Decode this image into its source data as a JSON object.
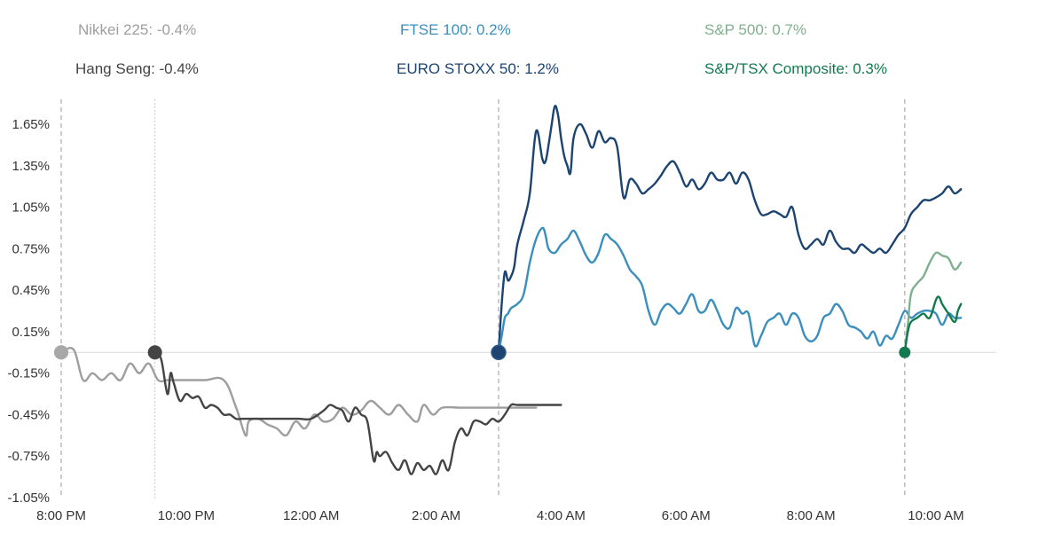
{
  "legend": [
    {
      "label": "Nikkei 225: -0.4%",
      "color": "#9e9e9e"
    },
    {
      "label": "FTSE 100: 0.2%",
      "color": "#3a8fbd"
    },
    {
      "label": "S&P 500: 0.7%",
      "color": "#7fb08f"
    },
    {
      "label": "Hang Seng: -0.4%",
      "color": "#444444"
    },
    {
      "label": "EURO STOXX 50: 1.2%",
      "color": "#1d4470"
    },
    {
      "label": "S&P/TSX Composite: 0.3%",
      "color": "#137a4f"
    }
  ],
  "chart_data": {
    "type": "line",
    "title": "",
    "xlabel": "",
    "ylabel": "",
    "x_unit": "hours since 8:00 PM",
    "xlim": [
      0,
      14.6
    ],
    "ylim": [
      -1.05,
      1.75
    ],
    "y_ticks": [
      -1.05,
      -0.75,
      -0.45,
      -0.15,
      0.15,
      0.45,
      0.75,
      1.05,
      1.35,
      1.65
    ],
    "y_tick_labels": [
      "-1.05%",
      "-0.75%",
      "-0.45%",
      "-0.15%",
      "0.15%",
      "0.45%",
      "0.75%",
      "1.05%",
      "1.35%",
      "1.65%"
    ],
    "x_ticks": [
      0,
      2,
      4,
      6,
      8,
      10,
      12,
      14
    ],
    "x_tick_labels": [
      "8:00 PM",
      "10:00 PM",
      "12:00 AM",
      "2:00 AM",
      "4:00 AM",
      "6:00 AM",
      "8:00 AM",
      "10:00 AM"
    ],
    "session_lines": [
      0,
      1.5,
      7,
      13.5
    ],
    "zero_line": 0,
    "series": [
      {
        "name": "Nikkei 225",
        "color": "#9e9e9e",
        "marker": "start",
        "x": [
          0,
          0.2,
          0.35,
          0.5,
          0.65,
          0.8,
          0.95,
          1.1,
          1.25,
          1.4,
          1.55,
          1.7,
          1.85,
          2.0,
          2.3,
          2.6,
          2.8,
          2.95,
          3.0,
          3.15,
          3.3,
          3.45,
          3.6,
          3.75,
          3.9,
          4.05,
          4.2,
          4.35,
          4.5,
          4.65,
          4.8,
          4.95,
          5.1,
          5.25,
          5.4,
          5.55,
          5.7,
          5.8,
          5.95,
          6.1,
          6.4,
          6.8,
          7.2,
          7.5,
          7.6
        ],
        "y": [
          0.0,
          0.02,
          -0.2,
          -0.15,
          -0.2,
          -0.15,
          -0.2,
          -0.08,
          -0.15,
          -0.08,
          -0.2,
          -0.2,
          -0.2,
          -0.2,
          -0.2,
          -0.2,
          -0.4,
          -0.6,
          -0.5,
          -0.48,
          -0.52,
          -0.55,
          -0.6,
          -0.5,
          -0.55,
          -0.45,
          -0.5,
          -0.48,
          -0.4,
          -0.45,
          -0.42,
          -0.35,
          -0.4,
          -0.45,
          -0.38,
          -0.45,
          -0.5,
          -0.38,
          -0.45,
          -0.4,
          -0.4,
          -0.4,
          -0.4,
          -0.4,
          -0.4
        ]
      },
      {
        "name": "Hang Seng",
        "color": "#444444",
        "marker": "start",
        "x": [
          1.5,
          1.6,
          1.7,
          1.75,
          1.8,
          1.9,
          2.0,
          2.1,
          2.2,
          2.3,
          2.4,
          2.5,
          2.6,
          2.7,
          2.8,
          2.9,
          3.0,
          3.2,
          3.4,
          3.6,
          3.8,
          4.0,
          4.2,
          4.3,
          4.4,
          4.5,
          4.6,
          4.7,
          4.8,
          4.9,
          5.0,
          5.05,
          5.1,
          5.2,
          5.3,
          5.4,
          5.5,
          5.6,
          5.7,
          5.8,
          5.9,
          6.0,
          6.1,
          6.2,
          6.3,
          6.4,
          6.5,
          6.6,
          6.7,
          6.8,
          6.9,
          7.0,
          7.1,
          7.2,
          7.3,
          7.5,
          7.8,
          8.0
        ],
        "y": [
          0.0,
          -0.05,
          -0.3,
          -0.15,
          -0.22,
          -0.35,
          -0.3,
          -0.33,
          -0.32,
          -0.4,
          -0.38,
          -0.4,
          -0.45,
          -0.45,
          -0.48,
          -0.48,
          -0.48,
          -0.48,
          -0.48,
          -0.48,
          -0.48,
          -0.48,
          -0.42,
          -0.38,
          -0.4,
          -0.42,
          -0.5,
          -0.4,
          -0.45,
          -0.5,
          -0.78,
          -0.72,
          -0.75,
          -0.72,
          -0.8,
          -0.85,
          -0.78,
          -0.88,
          -0.8,
          -0.85,
          -0.82,
          -0.88,
          -0.78,
          -0.85,
          -0.65,
          -0.55,
          -0.6,
          -0.5,
          -0.5,
          -0.52,
          -0.48,
          -0.5,
          -0.45,
          -0.38,
          -0.38,
          -0.38,
          -0.38,
          -0.38
        ]
      },
      {
        "name": "EURO STOXX 50",
        "color": "#1d4470",
        "marker": "start",
        "x": [
          7.0,
          7.05,
          7.1,
          7.15,
          7.2,
          7.25,
          7.3,
          7.4,
          7.5,
          7.6,
          7.7,
          7.75,
          7.8,
          7.85,
          7.9,
          7.95,
          8.0,
          8.05,
          8.1,
          8.15,
          8.2,
          8.3,
          8.4,
          8.5,
          8.6,
          8.7,
          8.8,
          8.9,
          9.0,
          9.1,
          9.2,
          9.3,
          9.4,
          9.5,
          9.6,
          9.7,
          9.8,
          9.9,
          10.0,
          10.1,
          10.2,
          10.3,
          10.4,
          10.5,
          10.6,
          10.7,
          10.8,
          10.9,
          11.0,
          11.1,
          11.2,
          11.3,
          11.4,
          11.5,
          11.6,
          11.7,
          11.8,
          11.9,
          12.0,
          12.1,
          12.2,
          12.3,
          12.4,
          12.5,
          12.6,
          12.7,
          12.8,
          12.9,
          13.0,
          13.1,
          13.2,
          13.3,
          13.4,
          13.5,
          13.6,
          13.7,
          13.8,
          13.9,
          14.0,
          14.1,
          14.2,
          14.3,
          14.4
        ],
        "y": [
          0.0,
          0.35,
          0.58,
          0.52,
          0.55,
          0.62,
          0.78,
          0.95,
          1.15,
          1.6,
          1.4,
          1.38,
          1.5,
          1.65,
          1.78,
          1.72,
          1.55,
          1.42,
          1.35,
          1.3,
          1.55,
          1.65,
          1.58,
          1.48,
          1.6,
          1.52,
          1.55,
          1.48,
          1.12,
          1.25,
          1.22,
          1.15,
          1.18,
          1.22,
          1.28,
          1.35,
          1.38,
          1.3,
          1.2,
          1.25,
          1.18,
          1.22,
          1.3,
          1.25,
          1.25,
          1.3,
          1.22,
          1.3,
          1.25,
          1.1,
          1.0,
          1.0,
          1.02,
          1.0,
          0.98,
          1.05,
          0.85,
          0.75,
          0.78,
          0.82,
          0.78,
          0.88,
          0.8,
          0.75,
          0.75,
          0.72,
          0.78,
          0.75,
          0.72,
          0.75,
          0.72,
          0.78,
          0.85,
          0.9,
          1.0,
          1.05,
          1.1,
          1.1,
          1.12,
          1.15,
          1.2,
          1.15,
          1.18
        ]
      },
      {
        "name": "FTSE 100",
        "color": "#3a8fbd",
        "marker": "none",
        "x": [
          7.0,
          7.05,
          7.1,
          7.15,
          7.2,
          7.3,
          7.4,
          7.5,
          7.6,
          7.7,
          7.75,
          7.8,
          7.9,
          8.0,
          8.1,
          8.2,
          8.3,
          8.4,
          8.5,
          8.6,
          8.7,
          8.8,
          8.9,
          9.0,
          9.1,
          9.2,
          9.3,
          9.4,
          9.5,
          9.6,
          9.7,
          9.8,
          9.9,
          10.0,
          10.1,
          10.2,
          10.3,
          10.4,
          10.5,
          10.6,
          10.7,
          10.8,
          10.9,
          11.0,
          11.1,
          11.2,
          11.3,
          11.4,
          11.5,
          11.6,
          11.7,
          11.8,
          11.9,
          12.0,
          12.1,
          12.2,
          12.3,
          12.4,
          12.5,
          12.6,
          12.7,
          12.8,
          12.9,
          13.0,
          13.1,
          13.2,
          13.3,
          13.4,
          13.5,
          13.6,
          13.7,
          13.8,
          13.9,
          14.0,
          14.1,
          14.2,
          14.3,
          14.4
        ],
        "y": [
          0.0,
          0.12,
          0.25,
          0.28,
          0.32,
          0.35,
          0.42,
          0.65,
          0.82,
          0.9,
          0.85,
          0.75,
          0.72,
          0.78,
          0.82,
          0.88,
          0.8,
          0.7,
          0.65,
          0.72,
          0.85,
          0.82,
          0.78,
          0.7,
          0.6,
          0.55,
          0.48,
          0.3,
          0.2,
          0.3,
          0.35,
          0.32,
          0.28,
          0.35,
          0.42,
          0.3,
          0.3,
          0.38,
          0.3,
          0.2,
          0.18,
          0.32,
          0.28,
          0.28,
          0.05,
          0.12,
          0.22,
          0.25,
          0.28,
          0.2,
          0.28,
          0.25,
          0.12,
          0.08,
          0.12,
          0.25,
          0.28,
          0.35,
          0.3,
          0.2,
          0.18,
          0.15,
          0.1,
          0.15,
          0.05,
          0.12,
          0.1,
          0.2,
          0.3,
          0.25,
          0.28,
          0.3,
          0.3,
          0.28,
          0.2,
          0.28,
          0.25,
          0.25
        ]
      },
      {
        "name": "S&P 500",
        "color": "#7fb08f",
        "marker": "none",
        "x": [
          13.5,
          13.55,
          13.6,
          13.7,
          13.8,
          13.9,
          14.0,
          14.1,
          14.2,
          14.3,
          14.4
        ],
        "y": [
          0.0,
          0.2,
          0.42,
          0.5,
          0.55,
          0.65,
          0.72,
          0.7,
          0.68,
          0.6,
          0.65
        ]
      },
      {
        "name": "S&P/TSX Composite",
        "color": "#137a4f",
        "marker": "start",
        "x": [
          13.5,
          13.55,
          13.6,
          13.7,
          13.8,
          13.9,
          14.0,
          14.05,
          14.1,
          14.2,
          14.3,
          14.35,
          14.4
        ],
        "y": [
          0.0,
          0.15,
          0.22,
          0.25,
          0.28,
          0.25,
          0.38,
          0.4,
          0.35,
          0.28,
          0.22,
          0.3,
          0.35
        ]
      }
    ]
  }
}
